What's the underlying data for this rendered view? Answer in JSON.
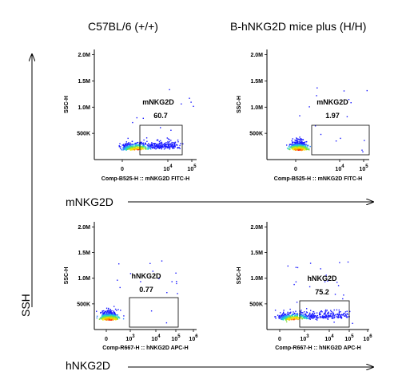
{
  "column_titles": [
    "C57BL/6 (+/+)",
    "B-hNKG2D mice plus (H/H)"
  ],
  "row_labels": [
    "mNKG2D",
    "hNKG2D"
  ],
  "y_axis_label": "SSH",
  "chart_data": [
    {
      "type": "scatter",
      "panel": "mNKG2D in C57BL/6 (+/+)",
      "xlabel": "Comp-B525-H :: mNKG2D FITC-H",
      "ylabel": "SSC-H",
      "x_ticks": [
        "0",
        "10^4",
        "10^5"
      ],
      "y_ticks": [
        "500K",
        "1.0M",
        "1.5M",
        "2.0M"
      ],
      "ylim": [
        0,
        2100000
      ],
      "gate": {
        "name": "mNKG2D",
        "value": "60.7"
      },
      "population": "spread"
    },
    {
      "type": "scatter",
      "panel": "mNKG2D in B-hNKG2D mice plus (H/H)",
      "xlabel": "Comp-B525-H :: mNKG2D FITC-H",
      "ylabel": "SSC-H",
      "x_ticks": [
        "0",
        "10^4",
        "10^5"
      ],
      "y_ticks": [
        "500K",
        "1.0M",
        "1.5M",
        "2.0M"
      ],
      "ylim": [
        0,
        2100000
      ],
      "gate": {
        "name": "mNKG2D",
        "value": "1.97"
      },
      "population": "negative"
    },
    {
      "type": "scatter",
      "panel": "hNKG2D in C57BL/6 (+/+)",
      "xlabel": "Comp-R667-H :: hNKG2D APC-H",
      "ylabel": "SSC-H",
      "x_ticks": [
        "0",
        "10^3",
        "10^4",
        "10^5",
        "10^6"
      ],
      "y_ticks": [
        "500K",
        "1.0M",
        "1.5M",
        "2.0M"
      ],
      "ylim": [
        0,
        2100000
      ],
      "gate": {
        "name": "hNKG2D",
        "value": "0.77"
      },
      "population": "negative"
    },
    {
      "type": "scatter",
      "panel": "hNKG2D in B-hNKG2D mice plus (H/H)",
      "xlabel": "Comp-R667-H :: hNKG2D APC-H",
      "ylabel": "SSC-H",
      "x_ticks": [
        "0",
        "10^3",
        "10^4",
        "10^5",
        "10^6"
      ],
      "y_ticks": [
        "500K",
        "1.0M",
        "1.5M",
        "2.0M"
      ],
      "ylim": [
        0,
        2100000
      ],
      "gate": {
        "name": "hNKG2D",
        "value": "75.2"
      },
      "population": "spread"
    }
  ]
}
